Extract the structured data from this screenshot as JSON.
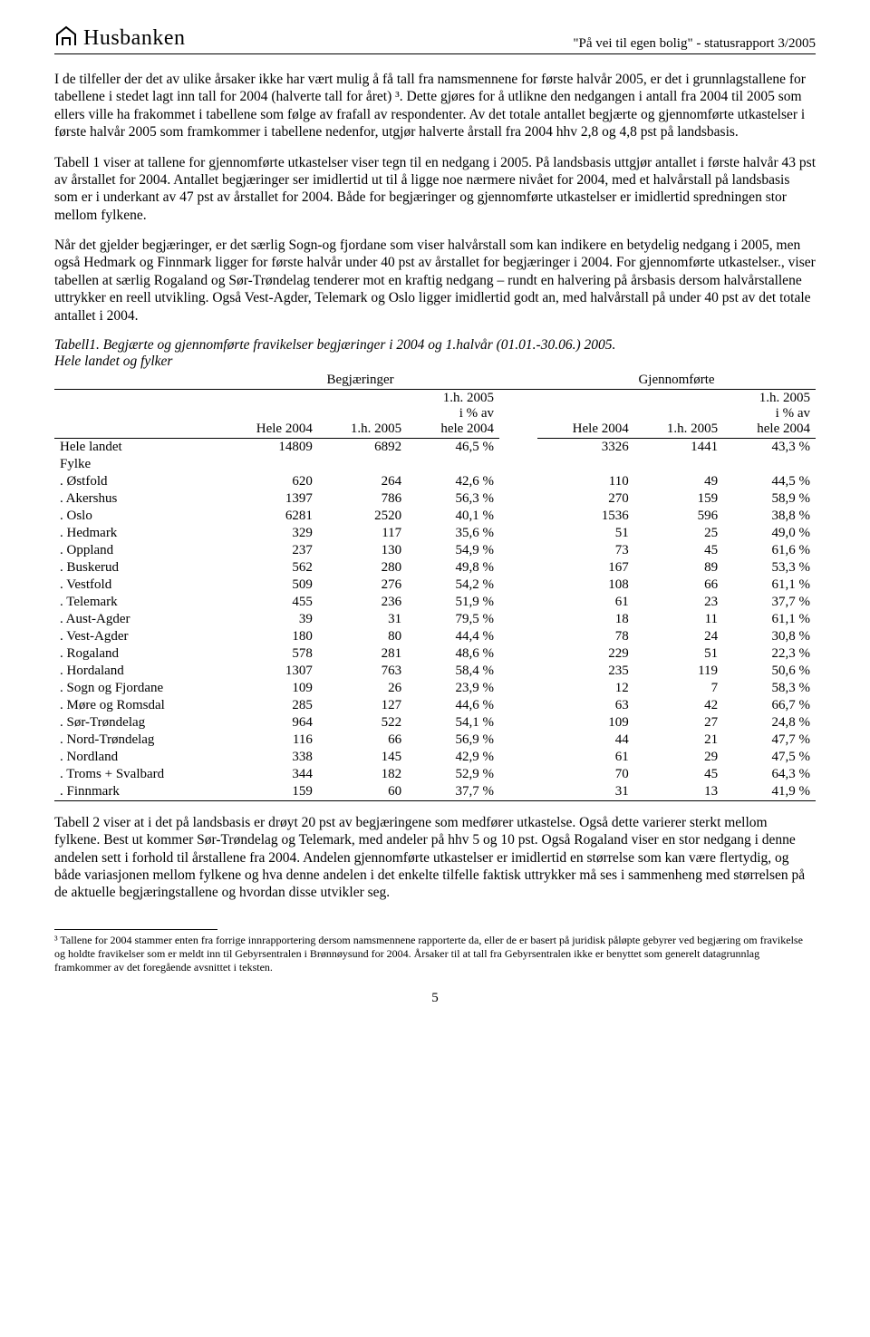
{
  "header": {
    "logo_text": "Husbanken",
    "right_text": "\"På vei til egen bolig\" - statusrapport 3/2005"
  },
  "paragraphs": {
    "p1": "I de tilfeller der det av ulike årsaker ikke har vært mulig å få tall fra namsmennene for første halvår 2005, er det i grunnlagstallene for tabellene i stedet lagt inn tall for 2004 (halverte tall for året) ³. Dette gjøres for å utlikne den nedgangen i antall fra 2004 til 2005 som ellers ville ha frakommet i tabellene som følge av frafall av respondenter. Av det totale antallet begjærte og gjennomførte utkastelser i første halvår 2005 som framkommer i tabellene nedenfor, utgjør halverte årstall fra 2004 hhv 2,8 og 4,8 pst på landsbasis.",
    "p2": "Tabell 1 viser at tallene for gjennomførte utkastelser viser tegn til en nedgang i 2005.  På landsbasis uttgjør antallet i første halvår 43 pst av årstallet for 2004. Antallet begjæringer ser imidlertid ut til å ligge noe nærmere nivået for 2004, med et halvårstall på landsbasis som er i underkant av 47 pst av årstallet for 2004. Både for begjæringer og gjennomførte utkastelser er imidlertid spredningen stor mellom fylkene.",
    "p3": "Når det gjelder begjæringer, er det særlig Sogn-og fjordane som viser halvårstall som kan indikere en betydelig nedgang i 2005, men også Hedmark og Finnmark ligger for første halvår under 40 pst av årstallet for begjæringer i 2004.  For gjennomførte utkastelser., viser tabellen at særlig Rogaland og Sør-Trøndelag tenderer mot en kraftig nedgang – rundt en halvering på årsbasis dersom halvårstallene uttrykker en reell utvikling.  Også Vest-Agder, Telemark og Oslo ligger imidlertid godt an, med halvårstall på under 40 pst av det totale antallet i 2004.",
    "p4": "Tabell 2 viser at i det på landsbasis er drøyt 20 pst av begjæringene som medfører utkastelse. Også dette varierer sterkt mellom fylkene.  Best ut kommer Sør-Trøndelag og Telemark, med andeler på hhv 5 og 10 pst.  Også Rogaland viser en stor nedgang i denne andelen sett i forhold til årstallene fra 2004. Andelen gjennomførte utkastelser er imidlertid en størrelse som kan være flertydig, og både variasjonen mellom fylkene og hva denne andelen i det enkelte tilfelle faktisk uttrykker må ses i sammenheng med størrelsen på de aktuelle begjæringstallene og hvordan disse utvikler seg."
  },
  "table": {
    "caption_line1": "Tabell1.  Begjærte og gjennomførte fravikelser begjæringer i 2004 og 1.halvår (01.01.-30.06.) 2005.",
    "caption_line2": "Hele landet og fylker",
    "group_headers": {
      "g1": "Begjæringer",
      "g2": "Gjennomførte"
    },
    "col_headers": {
      "c1": "Hele 2004",
      "c2": "1.h. 2005",
      "c3a": "1.h. 2005",
      "c3b": "i % av",
      "c3c": "hele 2004",
      "c4": "Hele 2004",
      "c5": "1.h. 2005",
      "c6a": "1.h. 2005",
      "c6b": "i % av",
      "c6c": "hele 2004"
    },
    "hele_landet_label": "Hele landet",
    "fylke_label": "Fylke",
    "hele_landet": {
      "v1": "14809",
      "v2": "6892",
      "v3": "46,5 %",
      "v4": "3326",
      "v5": "1441",
      "v6": "43,3 %"
    },
    "rows": [
      {
        "label": ". Østfold",
        "v1": "620",
        "v2": "264",
        "v3": "42,6 %",
        "v4": "110",
        "v5": "49",
        "v6": "44,5 %"
      },
      {
        "label": ". Akershus",
        "v1": "1397",
        "v2": "786",
        "v3": "56,3 %",
        "v4": "270",
        "v5": "159",
        "v6": "58,9 %"
      },
      {
        "label": ". Oslo",
        "v1": "6281",
        "v2": "2520",
        "v3": "40,1 %",
        "v4": "1536",
        "v5": "596",
        "v6": "38,8 %"
      },
      {
        "label": ". Hedmark",
        "v1": "329",
        "v2": "117",
        "v3": "35,6 %",
        "v4": "51",
        "v5": "25",
        "v6": "49,0 %"
      },
      {
        "label": ". Oppland",
        "v1": "237",
        "v2": "130",
        "v3": "54,9 %",
        "v4": "73",
        "v5": "45",
        "v6": "61,6 %"
      },
      {
        "label": ". Buskerud",
        "v1": "562",
        "v2": "280",
        "v3": "49,8 %",
        "v4": "167",
        "v5": "89",
        "v6": "53,3 %"
      },
      {
        "label": ". Vestfold",
        "v1": "509",
        "v2": "276",
        "v3": "54,2 %",
        "v4": "108",
        "v5": "66",
        "v6": "61,1 %"
      },
      {
        "label": ". Telemark",
        "v1": "455",
        "v2": "236",
        "v3": "51,9 %",
        "v4": "61",
        "v5": "23",
        "v6": "37,7 %"
      },
      {
        "label": ". Aust-Agder",
        "v1": "39",
        "v2": "31",
        "v3": "79,5 %",
        "v4": "18",
        "v5": "11",
        "v6": "61,1 %"
      },
      {
        "label": ". Vest-Agder",
        "v1": "180",
        "v2": "80",
        "v3": "44,4 %",
        "v4": "78",
        "v5": "24",
        "v6": "30,8 %"
      },
      {
        "label": ". Rogaland",
        "v1": "578",
        "v2": "281",
        "v3": "48,6 %",
        "v4": "229",
        "v5": "51",
        "v6": "22,3 %"
      },
      {
        "label": ". Hordaland",
        "v1": "1307",
        "v2": "763",
        "v3": "58,4 %",
        "v4": "235",
        "v5": "119",
        "v6": "50,6 %"
      },
      {
        "label": ". Sogn og Fjordane",
        "v1": "109",
        "v2": "26",
        "v3": "23,9 %",
        "v4": "12",
        "v5": "7",
        "v6": "58,3 %"
      },
      {
        "label": ". Møre og Romsdal",
        "v1": "285",
        "v2": "127",
        "v3": "44,6 %",
        "v4": "63",
        "v5": "42",
        "v6": "66,7 %"
      },
      {
        "label": ". Sør-Trøndelag",
        "v1": "964",
        "v2": "522",
        "v3": "54,1 %",
        "v4": "109",
        "v5": "27",
        "v6": "24,8 %"
      },
      {
        "label": ". Nord-Trøndelag",
        "v1": "116",
        "v2": "66",
        "v3": "56,9 %",
        "v4": "44",
        "v5": "21",
        "v6": "47,7 %"
      },
      {
        "label": ". Nordland",
        "v1": "338",
        "v2": "145",
        "v3": "42,9 %",
        "v4": "61",
        "v5": "29",
        "v6": "47,5 %"
      },
      {
        "label": ". Troms + Svalbard",
        "v1": "344",
        "v2": "182",
        "v3": "52,9 %",
        "v4": "70",
        "v5": "45",
        "v6": "64,3 %"
      },
      {
        "label": ". Finnmark",
        "v1": "159",
        "v2": "60",
        "v3": "37,7 %",
        "v4": "31",
        "v5": "13",
        "v6": "41,9 %"
      }
    ]
  },
  "footnote": "³ Tallene for 2004 stammer enten fra forrige innrapportering dersom namsmennene rapporterte da, eller de er basert på juridisk påløpte gebyrer ved begjæring om fravikelse og holdte fravikelser som er meldt inn til Gebyrsentralen i Brønnøysund for 2004.  Årsaker til at tall fra Gebyrsentralen ikke er benyttet som generelt datagrunnlag framkommer av det foregående avsnittet i teksten.",
  "page_number": "5"
}
